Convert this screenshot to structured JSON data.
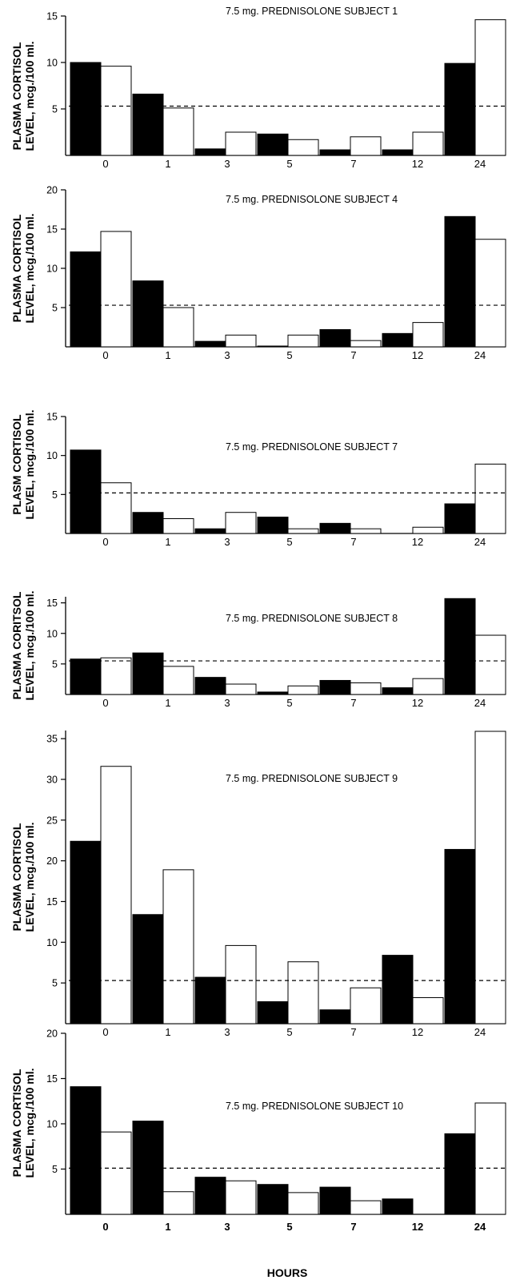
{
  "figure": {
    "xlabel": "HOURS",
    "colors": {
      "filled": "#000000",
      "open": "#ffffff",
      "stroke": "#000000"
    }
  },
  "chart_data": [
    {
      "type": "bar",
      "title": "7.5 mg. PREDNISOLONE SUBJECT 1",
      "ylabel": [
        "PLASMA CORTISOL",
        "LEVEL, mcg./100 ml."
      ],
      "xlabel": "",
      "categories": [
        "0",
        "1",
        "3",
        "5",
        "7",
        "12",
        "24"
      ],
      "series": [
        {
          "values": [
            10.0,
            6.6,
            0.7,
            2.3,
            0.6,
            0.6,
            9.9
          ]
        },
        {
          "values": [
            9.6,
            5.1,
            2.5,
            1.7,
            2.0,
            2.5,
            14.6
          ]
        }
      ],
      "yticks": [
        5,
        10,
        15
      ],
      "ylim": [
        0,
        15
      ],
      "reference_line": 5.3
    },
    {
      "type": "bar",
      "title": "7.5 mg. PREDNISOLONE SUBJECT 4",
      "ylabel": [
        "PLASMA CORTISOL",
        "LEVEL, mcg./100 ml."
      ],
      "xlabel": "",
      "categories": [
        "0",
        "1",
        "3",
        "5",
        "7",
        "12",
        "24"
      ],
      "series": [
        {
          "values": [
            12.1,
            8.4,
            0.7,
            0.1,
            2.2,
            1.7,
            16.6
          ]
        },
        {
          "values": [
            14.7,
            5.0,
            1.5,
            1.5,
            0.8,
            3.1,
            13.7
          ]
        }
      ],
      "yticks": [
        5,
        10,
        15,
        20
      ],
      "ylim": [
        0,
        20
      ],
      "reference_line": 5.3
    },
    {
      "type": "bar",
      "title": "7.5 mg. PREDNISOLONE SUBJECT 7",
      "ylabel": [
        "PLASM   CORTISOL",
        "LEVEL, mcg./100 ml."
      ],
      "xlabel": "",
      "categories": [
        "0",
        "1",
        "3",
        "5",
        "7",
        "12",
        "24"
      ],
      "series": [
        {
          "values": [
            10.7,
            2.7,
            0.6,
            2.1,
            1.3,
            0.0,
            3.8
          ]
        },
        {
          "values": [
            6.5,
            1.9,
            2.7,
            0.6,
            0.6,
            0.8,
            8.9
          ]
        }
      ],
      "yticks": [
        5,
        10,
        15
      ],
      "ylim": [
        0,
        15
      ],
      "reference_line": 5.2
    },
    {
      "type": "bar",
      "title": "7.5 mg. PREDNISOLONE SUBJECT 8",
      "ylabel": [
        "PLASMA CORITSOL",
        "LEVEL, mcg./100 ml."
      ],
      "xlabel": "",
      "categories": [
        "0",
        "1",
        "3",
        "5",
        "7",
        "12",
        "24"
      ],
      "series": [
        {
          "values": [
            5.8,
            6.8,
            2.8,
            0.4,
            2.3,
            1.1,
            15.7
          ]
        },
        {
          "values": [
            6.0,
            4.6,
            1.7,
            1.4,
            1.9,
            2.6,
            9.7
          ]
        }
      ],
      "yticks": [
        5,
        10,
        15
      ],
      "ylim": [
        0,
        16
      ],
      "reference_line": 5.5
    },
    {
      "type": "bar",
      "title": "7.5 mg. PREDNISOLONE SUBJECT 9",
      "ylabel": [
        "PLASMA CORTISOL",
        "LEVEL, mcg./100 ml."
      ],
      "xlabel": "",
      "categories": [
        "0",
        "1",
        "3",
        "5",
        "7",
        "12",
        "24"
      ],
      "series": [
        {
          "values": [
            22.4,
            13.4,
            5.7,
            2.7,
            1.7,
            8.4,
            21.4
          ]
        },
        {
          "values": [
            31.6,
            18.9,
            9.6,
            7.6,
            4.4,
            3.2,
            35.9
          ]
        }
      ],
      "yticks": [
        5,
        10,
        15,
        20,
        25,
        30,
        35
      ],
      "ylim": [
        0,
        36
      ],
      "reference_line": 5.3
    },
    {
      "type": "bar",
      "title": "7.5 mg. PREDNISOLONE SUBJECT 10",
      "ylabel": [
        "PLASMA CORTISOL",
        "LEVEL, mcg./100 ml."
      ],
      "xlabel": "",
      "categories": [
        "0",
        "1",
        "3",
        "5",
        "7",
        "12",
        "24"
      ],
      "series": [
        {
          "values": [
            14.1,
            10.3,
            4.1,
            3.3,
            3.0,
            1.7,
            8.9
          ]
        },
        {
          "values": [
            9.1,
            2.5,
            3.7,
            2.4,
            1.5,
            0.0,
            12.3
          ]
        }
      ],
      "yticks": [
        5,
        10,
        15,
        20
      ],
      "ylim": [
        0,
        20
      ],
      "reference_line": 5.1
    }
  ]
}
